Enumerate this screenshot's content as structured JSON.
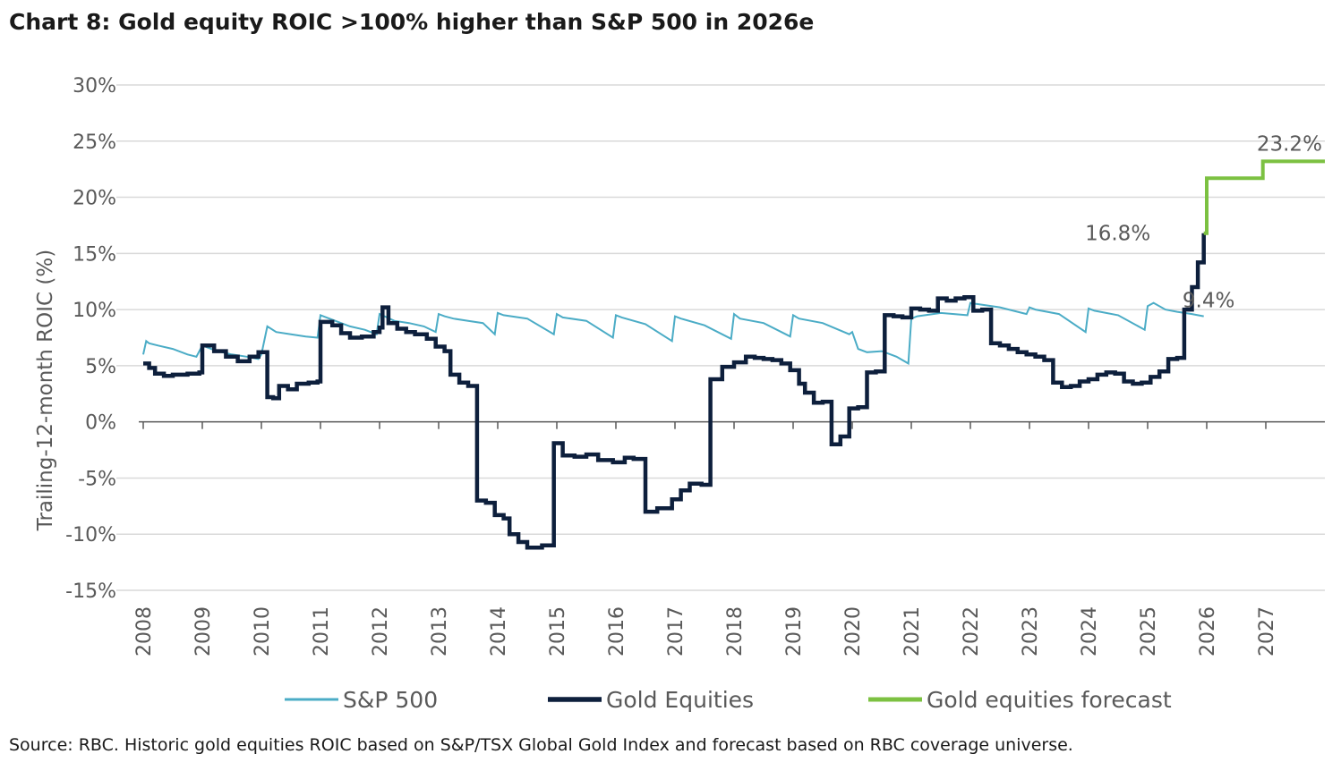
{
  "title": "Chart 8: Gold equity ROIC >100% higher than S&P 500 in 2026e",
  "source": "Source: RBC. Historic gold equities ROIC based on S&P/TSX Global Gold Index and forecast based on RBC coverage universe.",
  "colors": {
    "sp500": "#4bacc6",
    "gold": "#0d1f3c",
    "forecast": "#7cc142",
    "grid": "#d9d9d9",
    "axis": "#595959"
  },
  "chart_data": {
    "type": "line",
    "title": "Chart 8: Gold equity ROIC >100% higher than S&P 500 in 2026e",
    "xlabel": "",
    "ylabel": "Trailing-12-month ROIC (%)",
    "xlim": [
      2008,
      2028
    ],
    "ylim": [
      -15,
      30
    ],
    "y_ticks": [
      30,
      25,
      20,
      15,
      10,
      5,
      0,
      -5,
      -10,
      -15
    ],
    "y_tick_labels": [
      "30%",
      "25%",
      "20%",
      "15%",
      "10%",
      "5%",
      "0%",
      "-5%",
      "-10%",
      "-15%"
    ],
    "x_ticks": [
      2008,
      2009,
      2010,
      2011,
      2012,
      2013,
      2014,
      2015,
      2016,
      2017,
      2018,
      2019,
      2020,
      2021,
      2022,
      2023,
      2024,
      2025,
      2026,
      2027
    ],
    "x_tick_labels": [
      "2008",
      "2009",
      "2010",
      "2011",
      "2012",
      "2013",
      "2014",
      "2015",
      "2016",
      "2017",
      "2018",
      "2019",
      "2020",
      "2021",
      "2022",
      "2023",
      "2024",
      "2025",
      "2026",
      "2027"
    ],
    "grid": true,
    "legend": "bottom",
    "series": [
      {
        "name": "S&P 500",
        "style": "thin",
        "x": [
          2008.0,
          2008.05,
          2008.1,
          2008.25,
          2008.5,
          2008.75,
          2008.9,
          2009.0,
          2009.25,
          2009.5,
          2009.75,
          2009.95,
          2010.0,
          2010.1,
          2010.25,
          2010.5,
          2010.75,
          2010.95,
          2011.0,
          2011.25,
          2011.5,
          2011.75,
          2011.95,
          2012.0,
          2012.25,
          2012.5,
          2012.75,
          2012.95,
          2013.0,
          2013.1,
          2013.25,
          2013.5,
          2013.75,
          2013.95,
          2014.0,
          2014.1,
          2014.5,
          2014.95,
          2015.0,
          2015.1,
          2015.5,
          2015.95,
          2016.0,
          2016.1,
          2016.5,
          2016.95,
          2017.0,
          2017.1,
          2017.5,
          2017.95,
          2018.0,
          2018.1,
          2018.5,
          2018.95,
          2019.0,
          2019.1,
          2019.5,
          2019.95,
          2020.0,
          2020.1,
          2020.25,
          2020.5,
          2020.75,
          2020.95,
          2021.0,
          2021.1,
          2021.5,
          2021.95,
          2022.0,
          2022.1,
          2022.5,
          2022.95,
          2023.0,
          2023.1,
          2023.5,
          2023.95,
          2024.0,
          2024.1,
          2024.5,
          2024.95,
          2025.0,
          2025.1,
          2025.3,
          2025.5,
          2025.75,
          2025.95
        ],
        "y": [
          6.0,
          7.2,
          7.0,
          6.8,
          6.5,
          6.0,
          5.8,
          6.8,
          6.3,
          6.0,
          5.8,
          5.6,
          6.0,
          8.5,
          8.0,
          7.8,
          7.6,
          7.5,
          9.5,
          9.0,
          8.5,
          8.2,
          7.8,
          9.6,
          9.0,
          8.8,
          8.5,
          8.0,
          9.6,
          9.4,
          9.2,
          9.0,
          8.8,
          7.8,
          9.7,
          9.5,
          9.2,
          7.8,
          9.6,
          9.3,
          9.0,
          7.5,
          9.5,
          9.3,
          8.7,
          7.2,
          9.4,
          9.2,
          8.6,
          7.4,
          9.6,
          9.2,
          8.8,
          7.6,
          9.5,
          9.2,
          8.8,
          7.8,
          8.0,
          6.5,
          6.2,
          6.3,
          5.8,
          5.2,
          9.2,
          9.4,
          9.7,
          9.5,
          10.6,
          10.5,
          10.2,
          9.6,
          10.2,
          10.0,
          9.6,
          8.0,
          10.1,
          9.9,
          9.5,
          8.2,
          10.3,
          10.6,
          10.0,
          9.8,
          9.6,
          9.4
        ]
      },
      {
        "name": "Gold Equities",
        "style": "thick",
        "x": [
          2008.0,
          2008.1,
          2008.2,
          2008.35,
          2008.5,
          2008.75,
          2008.95,
          2009.0,
          2009.2,
          2009.4,
          2009.6,
          2009.8,
          2009.95,
          2010.1,
          2010.2,
          2010.3,
          2010.45,
          2010.6,
          2010.8,
          2010.95,
          2011.0,
          2011.2,
          2011.35,
          2011.5,
          2011.7,
          2011.9,
          2012.0,
          2012.05,
          2012.15,
          2012.3,
          2012.45,
          2012.6,
          2012.8,
          2012.95,
          2013.1,
          2013.2,
          2013.35,
          2013.5,
          2013.65,
          2013.8,
          2013.95,
          2014.1,
          2014.2,
          2014.35,
          2014.5,
          2014.75,
          2014.95,
          2015.1,
          2015.3,
          2015.5,
          2015.7,
          2015.95,
          2016.15,
          2016.3,
          2016.5,
          2016.7,
          2016.95,
          2017.1,
          2017.25,
          2017.45,
          2017.6,
          2017.8,
          2018.0,
          2018.2,
          2018.35,
          2018.5,
          2018.65,
          2018.8,
          2018.95,
          2019.1,
          2019.2,
          2019.35,
          2019.5,
          2019.65,
          2019.8,
          2019.95,
          2020.1,
          2020.25,
          2020.4,
          2020.55,
          2020.7,
          2020.85,
          2021.0,
          2021.15,
          2021.3,
          2021.45,
          2021.6,
          2021.75,
          2021.9,
          2022.05,
          2022.2,
          2022.35,
          2022.5,
          2022.65,
          2022.8,
          2022.95,
          2023.1,
          2023.25,
          2023.4,
          2023.55,
          2023.7,
          2023.85,
          2024.0,
          2024.15,
          2024.3,
          2024.45,
          2024.6,
          2024.75,
          2024.9,
          2025.05,
          2025.2,
          2025.35,
          2025.5,
          2025.62,
          2025.75,
          2025.85,
          2025.95
        ],
        "y": [
          5.2,
          4.8,
          4.3,
          4.1,
          4.2,
          4.3,
          4.4,
          6.8,
          6.3,
          5.8,
          5.4,
          5.8,
          6.2,
          2.2,
          2.1,
          3.2,
          2.9,
          3.4,
          3.5,
          3.6,
          8.9,
          8.6,
          7.9,
          7.5,
          7.6,
          8.0,
          8.4,
          10.2,
          8.8,
          8.3,
          8.0,
          7.8,
          7.4,
          6.7,
          6.3,
          4.2,
          3.5,
          3.2,
          -7.0,
          -7.2,
          -8.3,
          -8.6,
          -10.0,
          -10.7,
          -11.2,
          -11.0,
          -1.9,
          -3.0,
          -3.1,
          -2.9,
          -3.4,
          -3.6,
          -3.2,
          -3.3,
          -8.0,
          -7.7,
          -6.9,
          -6.1,
          -5.5,
          -5.6,
          3.8,
          4.9,
          5.3,
          5.8,
          5.7,
          5.6,
          5.5,
          5.2,
          4.6,
          3.4,
          2.6,
          1.7,
          1.8,
          -2.0,
          -1.3,
          1.2,
          1.3,
          4.4,
          4.5,
          9.5,
          9.4,
          9.3,
          10.1,
          10.0,
          9.9,
          11.0,
          10.8,
          11.0,
          11.1,
          9.9,
          10.0,
          7.0,
          6.8,
          6.5,
          6.2,
          6.0,
          5.8,
          5.5,
          3.5,
          3.1,
          3.2,
          3.6,
          3.8,
          4.2,
          4.4,
          4.3,
          3.6,
          3.4,
          3.5,
          4.0,
          4.5,
          5.6,
          5.7,
          10.0,
          12.0,
          14.2,
          16.8
        ]
      },
      {
        "name": "Gold equities forecast",
        "style": "forecast",
        "x": [
          2025.95,
          2026.0,
          2026.0,
          2026.95,
          2026.95,
          2028.0
        ],
        "y": [
          16.8,
          16.8,
          21.7,
          21.7,
          23.2,
          23.2
        ]
      }
    ],
    "annotations": [
      {
        "text": "23.2%",
        "x": 2027.4,
        "y": 23.2
      },
      {
        "text": "16.8%",
        "x": 2025.2,
        "y": 16.8
      },
      {
        "text": "9.4%",
        "x": 2025.85,
        "y": 9.4
      }
    ]
  }
}
